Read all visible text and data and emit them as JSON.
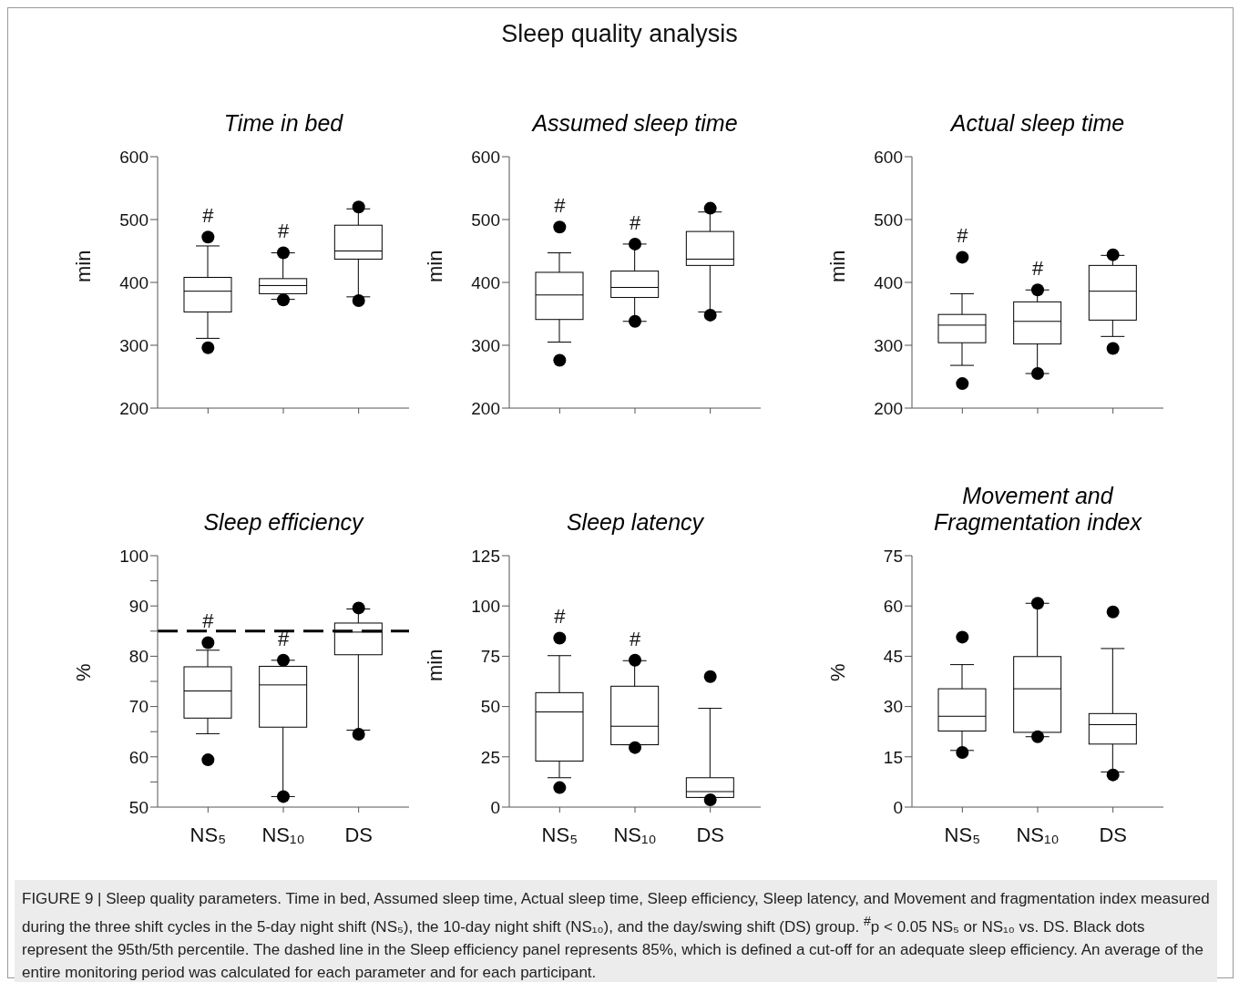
{
  "chart_data": [
    {
      "type": "box",
      "title": "Time in bed",
      "ylabel": "min",
      "categories": [
        null,
        null,
        null
      ],
      "ylim": [
        200,
        600
      ],
      "yticks": [
        200,
        300,
        400,
        500,
        600
      ],
      "boxes": [
        {
          "low": 311,
          "q1": 353,
          "median": 386,
          "q3": 408,
          "high": 458,
          "outliers": [
            472,
            296
          ]
        },
        {
          "low": 373,
          "q1": 382,
          "median": 395,
          "q3": 406,
          "high": 447,
          "outliers": [
            447,
            372
          ]
        },
        {
          "low": 377,
          "q1": 437,
          "median": 450,
          "q3": 491,
          "high": 517,
          "outliers": [
            520,
            371
          ]
        }
      ],
      "annotations": [
        "#",
        "#"
      ]
    },
    {
      "type": "box",
      "title": "Assumed sleep time",
      "ylabel": "min",
      "categories": [
        null,
        null,
        null
      ],
      "ylim": [
        200,
        600
      ],
      "yticks": [
        200,
        300,
        400,
        500,
        600
      ],
      "boxes": [
        {
          "low": 305,
          "q1": 341,
          "median": 380,
          "q3": 416,
          "high": 447,
          "outliers": [
            488,
            276
          ]
        },
        {
          "low": 338,
          "q1": 376,
          "median": 392,
          "q3": 418,
          "high": 461,
          "outliers": [
            461,
            338
          ]
        },
        {
          "low": 353,
          "q1": 427,
          "median": 437,
          "q3": 481,
          "high": 512,
          "outliers": [
            518,
            348
          ]
        }
      ],
      "annotations": [
        "#",
        "#"
      ]
    },
    {
      "type": "box",
      "title": "Actual sleep time",
      "ylabel": "min",
      "categories": [
        null,
        null,
        null
      ],
      "ylim": [
        200,
        600
      ],
      "yticks": [
        200,
        300,
        400,
        500,
        600
      ],
      "boxes": [
        {
          "low": 268,
          "q1": 304,
          "median": 332,
          "q3": 349,
          "high": 382,
          "outliers": [
            440,
            239
          ]
        },
        {
          "low": 255,
          "q1": 302,
          "median": 338,
          "q3": 369,
          "high": 388,
          "outliers": [
            388,
            255
          ]
        },
        {
          "low": 314,
          "q1": 340,
          "median": 386,
          "q3": 427,
          "high": 443,
          "outliers": [
            444,
            295
          ]
        }
      ],
      "annotations": [
        "#",
        "#"
      ]
    },
    {
      "type": "box",
      "title": "Sleep efficiency",
      "ylabel": "%",
      "categories": [
        "NS₅",
        "NS₁₀",
        "DS"
      ],
      "ylim": [
        50,
        100
      ],
      "yticks": [
        50,
        {
          "value": 55,
          "label": null
        },
        60,
        {
          "value": 65,
          "label": null
        },
        70,
        {
          "value": 75,
          "label": null
        },
        80,
        {
          "value": 85,
          "label": null
        },
        90,
        {
          "value": 95,
          "label": null
        },
        100
      ],
      "boxes": [
        {
          "low": 64.6,
          "q1": 67.7,
          "median": 73.1,
          "q3": 77.9,
          "high": 81.2,
          "outliers": [
            82.7,
            59.4
          ]
        },
        {
          "low": 52.1,
          "q1": 65.9,
          "median": 74.3,
          "q3": 78.0,
          "high": 79.2,
          "outliers": [
            79.2,
            52.1
          ]
        },
        {
          "low": 65.3,
          "q1": 80.3,
          "median": 84.8,
          "q3": 86.6,
          "high": 89.4,
          "outliers": [
            89.6,
            64.5
          ]
        }
      ],
      "ref_lines": [
        {
          "axis": "y",
          "value": 85,
          "line_style": "dashed"
        }
      ],
      "annotations": [
        "#",
        "#"
      ]
    },
    {
      "type": "box",
      "title": "Sleep latency",
      "ylabel": "min",
      "categories": [
        "NS₅",
        "NS₁₀",
        "DS"
      ],
      "ylim": [
        0,
        125
      ],
      "yticks": [
        0,
        25,
        50,
        75,
        100,
        125
      ],
      "boxes": [
        {
          "low": 14.6,
          "q1": 22.9,
          "median": 47.3,
          "q3": 56.9,
          "high": 75.3,
          "outliers": [
            84.0,
            9.7
          ]
        },
        {
          "low": 31.0,
          "q1": 31.0,
          "median": 40.2,
          "q3": 60.1,
          "high": 72.8,
          "outliers": [
            73.0,
            29.6
          ]
        },
        {
          "low": 4.8,
          "q1": 4.8,
          "median": 7.7,
          "q3": 14.6,
          "high": 49.1,
          "outliers": [
            64.9,
            3.6
          ]
        }
      ],
      "annotations": [
        "#",
        "#"
      ]
    },
    {
      "type": "box",
      "title": "Movement and Fragmentation index",
      "ylabel": "%",
      "categories": [
        "NS₅",
        "NS₁₀",
        "DS"
      ],
      "ylim": [
        0,
        75
      ],
      "yticks": [
        0,
        15,
        30,
        45,
        60,
        75
      ],
      "boxes": [
        {
          "low": 16.9,
          "q1": 22.7,
          "median": 27.1,
          "q3": 35.3,
          "high": 42.5,
          "outliers": [
            50.7,
            16.3
          ]
        },
        {
          "low": 21.0,
          "q1": 22.3,
          "median": 35.3,
          "q3": 44.9,
          "high": 60.8,
          "outliers": [
            60.8,
            21.0
          ]
        },
        {
          "low": 10.5,
          "q1": 18.8,
          "median": 24.6,
          "q3": 27.9,
          "high": 47.3,
          "outliers": [
            58.2,
            9.6
          ]
        }
      ],
      "annotations": [
        "Sleep quality analysis",
        "FIGURE 9 | Sleep quality parameters. Time in bed, Assumed sleep time, Actual sleep time, Sleep efficiency, Sleep latency, and Movement and fragmentation index measured during the three shift cycles in the 5-day night shift (NS₅), the 10-day night shift (NS₁₀), and the day/swing shift (DS) group. $^{#}$p < 0.05 NS₅ or NS₁₀ vs. DS. Black dots represent the 95th/5th percentile. The dashed line in the Sleep efficiency panel represents 85%, which is defined a cut-off for an adequate sleep efficiency. An average of the entire monitoring period was calculated for each parameter and for each participant."
      ]
    }
  ]
}
